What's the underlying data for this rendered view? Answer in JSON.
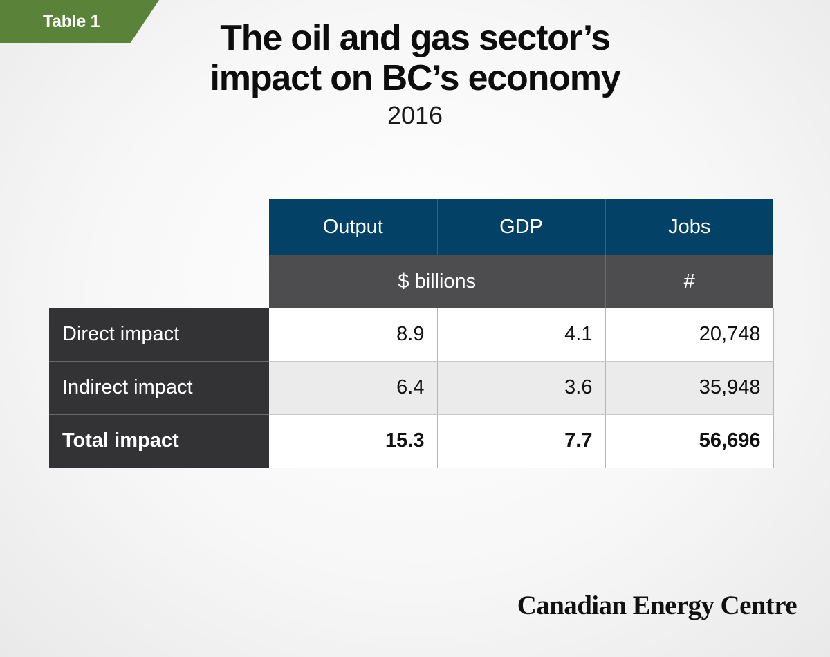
{
  "tag": "Table 1",
  "title_line1": "The oil and gas sector’s",
  "title_line2": "impact on BC’s economy",
  "subtitle": "2016",
  "footer": "Canadian Energy Centre",
  "chart_data": {
    "type": "table",
    "columns": [
      "Output",
      "GDP",
      "Jobs"
    ],
    "units": [
      "$ billions",
      "#"
    ],
    "rows": [
      {
        "label": "Direct impact",
        "values": [
          "8.9",
          "4.1",
          "20,748"
        ]
      },
      {
        "label": "Indirect impact",
        "values": [
          "6.4",
          "3.6",
          "35,948"
        ]
      },
      {
        "label": "Total impact",
        "values": [
          "15.3",
          "7.7",
          "56,696"
        ]
      }
    ]
  }
}
